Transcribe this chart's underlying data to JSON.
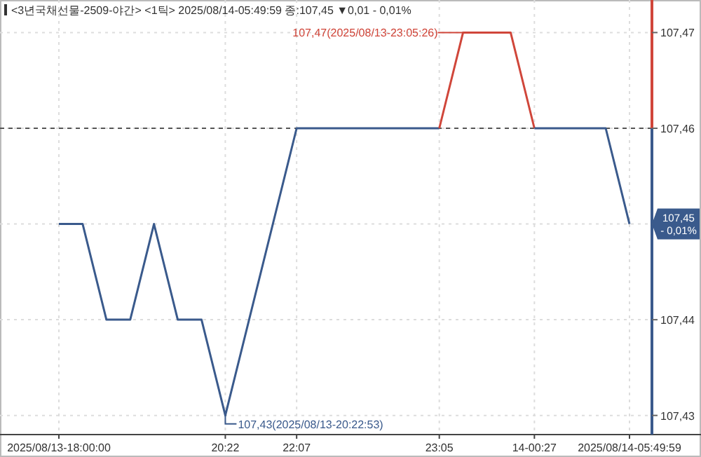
{
  "chart_data": {
    "type": "line",
    "title": "<3년국채선물-2509-야간> <1틱> 2025/08/14-05:49:59 종:107,45 ▼0,01 - 0,01%",
    "categories": [
      "2025/08/13-18:00:00",
      null,
      null,
      null,
      null,
      null,
      null,
      "20:22",
      null,
      null,
      "22:07",
      null,
      null,
      null,
      null,
      null,
      "23:05",
      null,
      null,
      null,
      "14-00:27",
      null,
      null,
      null,
      "2025/08/14-05:49:59"
    ],
    "series": [
      {
        "color": "#3a5a8c",
        "values": [
          107.45,
          107.45,
          107.44,
          107.44,
          107.45,
          107.44,
          107.44,
          107.43,
          null,
          null,
          107.46,
          null,
          null,
          null,
          null,
          null,
          107.46,
          null,
          null,
          null,
          null,
          null,
          null,
          null,
          null
        ]
      },
      {
        "color": "#d0463a",
        "values": [
          null,
          null,
          null,
          null,
          null,
          null,
          null,
          null,
          null,
          null,
          null,
          null,
          null,
          null,
          null,
          null,
          107.46,
          107.47,
          null,
          107.47,
          107.46,
          null,
          null,
          null,
          null
        ]
      },
      {
        "color": "#3a5a8c",
        "values": [
          null,
          null,
          null,
          null,
          null,
          null,
          null,
          null,
          null,
          null,
          null,
          null,
          null,
          null,
          null,
          null,
          null,
          null,
          null,
          null,
          107.46,
          null,
          null,
          107.46,
          107.45
        ]
      }
    ],
    "ylim": [
      107.428,
      107.4734
    ],
    "yticks": [
      {
        "value": 107.43,
        "label": "107,43"
      },
      {
        "value": 107.44,
        "label": "107,44"
      },
      {
        "value": 107.45,
        "label": null
      },
      {
        "value": 107.46,
        "label": "107,46"
      },
      {
        "value": 107.47,
        "label": "107,47"
      }
    ],
    "grid": true,
    "ref_lines": [
      {
        "axis": "y",
        "value": 107.46,
        "color": "#555555",
        "line_style": "dashed"
      }
    ],
    "annotations": [
      "107,47(2025/08/13-23:05:26)",
      {
        "text": "107,43(2025/08/13-20:22:53)",
        "x": "20:22",
        "y": 107.43
      },
      "107,45",
      "- 0,01%"
    ]
  }
}
